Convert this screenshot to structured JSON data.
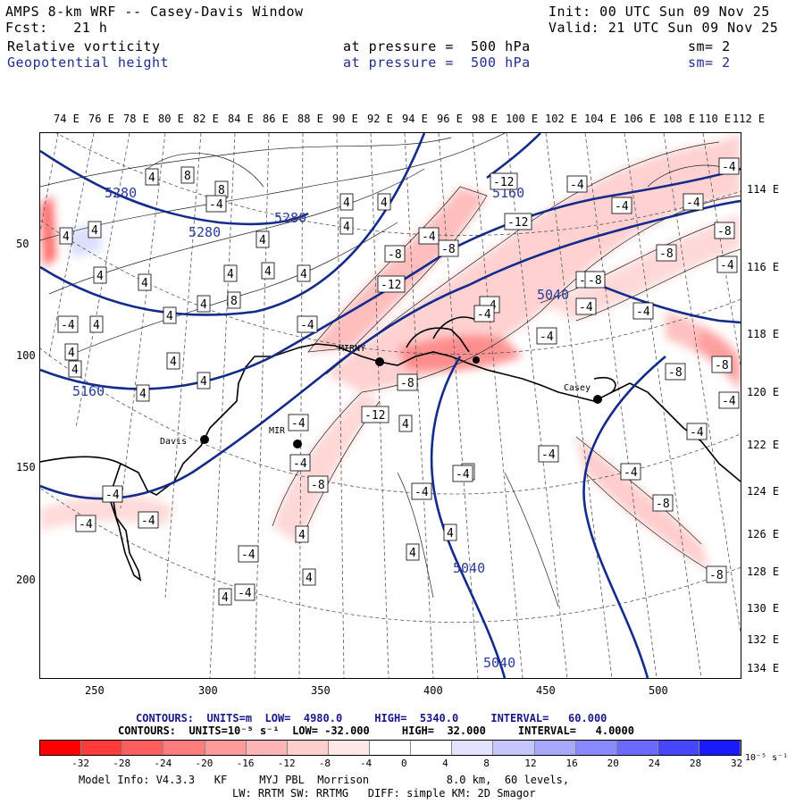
{
  "header": {
    "title": "AMPS 8-km WRF -- Casey-Davis Window",
    "init": "Init: 00 UTC Sun 09 Nov 25",
    "fcst": "Fcst:   21 h",
    "valid": "Valid: 21 UTC Sun 09 Nov 25",
    "field1": "Relative vorticity",
    "field1_level": "at pressure =  500 hPa",
    "field1_sm": "sm= 2",
    "field2": "Geopotential height",
    "field2_level": "at pressure =  500 hPa",
    "field2_sm": "sm= 2"
  },
  "longitude_top": [
    "74 E",
    "76 E",
    "78 E",
    "80 E",
    "82 E",
    "84 E",
    "86 E",
    "88 E",
    "90 E",
    "92 E",
    "94 E",
    "96 E",
    "98 E",
    "100 E",
    "102 E",
    "104 E",
    "106 E",
    "108 E",
    "110 E",
    "112 E"
  ],
  "longitude_right": [
    "114 E",
    "116 E",
    "118 E",
    "120 E",
    "122 E",
    "124 E",
    "126 E",
    "128 E",
    "130 E",
    "132 E",
    "134 E"
  ],
  "y_ticks": [
    "50",
    "100",
    "150",
    "200"
  ],
  "x_ticks": [
    "250",
    "300",
    "350",
    "400",
    "450",
    "500"
  ],
  "stations": [
    "MIRNY",
    "MIR",
    "Davis",
    "Casey"
  ],
  "height_labels": [
    "5280",
    "5280",
    "5280",
    "5160",
    "5160",
    "5040",
    "5040",
    "5040"
  ],
  "vort_labels_pos": [
    "4",
    "8",
    "8",
    "4",
    "4",
    "4",
    "4",
    "4",
    "4",
    "4",
    "4",
    "4",
    "4",
    "8",
    "4",
    "4",
    "4",
    "4",
    "4",
    "4",
    "4",
    "4",
    "4",
    "4",
    "4",
    "4",
    "4",
    "4",
    "4",
    "4"
  ],
  "vort_labels_neg": [
    "-12",
    "-8",
    "-4",
    "-4",
    "-8",
    "-12",
    "-4",
    "-4",
    "-12",
    "-4",
    "-4",
    "-8",
    "-4",
    "-4",
    "-4",
    "-8",
    "-8",
    "-4",
    "-8",
    "-12",
    "-4",
    "-8",
    "-8",
    "-8",
    "-4",
    "-4",
    "-4",
    "-4",
    "-4",
    "-4",
    "-8",
    "-4",
    "-4",
    "-4",
    "-4",
    "-4",
    "-8",
    "-4",
    "-4",
    "-4",
    "-4",
    "-4",
    "-8"
  ],
  "contours_info": {
    "line1_label": "CONTOURS:  UNITS=m  LOW=  4980.0     HIGH=  5340.0     INTERVAL=   60.000",
    "line2_label": "CONTOURS:  UNITS=10⁻⁵ s⁻¹  LOW= -32.000     HIGH=  32.000     INTERVAL=   4.0000"
  },
  "colorbar": {
    "labels": [
      "-32",
      "-28",
      "-24",
      "-20",
      "-16",
      "-12",
      "-8",
      "-4",
      "0",
      "4",
      "8",
      "12",
      "16",
      "20",
      "24",
      "28",
      "32"
    ],
    "units": "10⁻⁵ s⁻¹",
    "colors": [
      "#ff0000",
      "#ff3a3a",
      "#ff5e5e",
      "#ff7d7d",
      "#ff9a9a",
      "#ffb5b5",
      "#ffcece",
      "#ffe7e7",
      "#ffffff",
      "#ffffff",
      "#e3e3ff",
      "#c6c6ff",
      "#a8a8ff",
      "#8a8aff",
      "#6a6aff",
      "#4646ff",
      "#1a1aff"
    ]
  },
  "footer": {
    "line1": "Model Info: V4.3.3   KF     MYJ PBL  Morrison            8.0 km,  60 levels,",
    "line2": "LW: RRTM SW: RRTMG   DIFF: simple KM: 2D Smagor"
  }
}
